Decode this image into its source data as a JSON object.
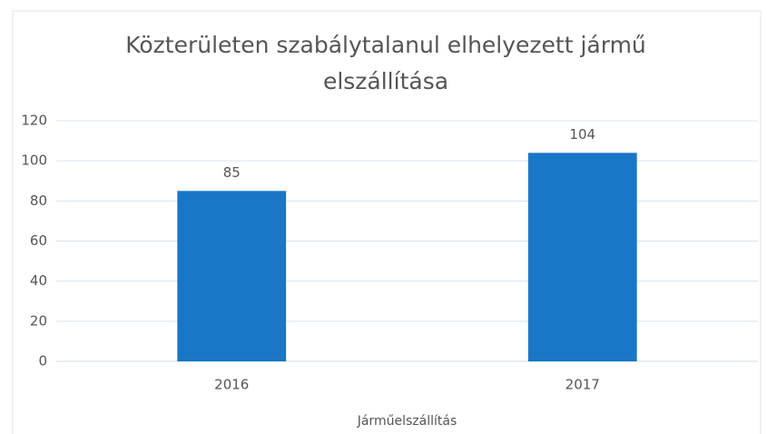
{
  "chart_data": {
    "type": "bar",
    "title": "Közterületen szabálytalanul elhelyezett jármű elszállítása",
    "categories": [
      "2016",
      "2017"
    ],
    "values": [
      85,
      104
    ],
    "color": "#1a76c6",
    "x_label": "Járműelszállítás",
    "ylim": [
      0,
      120
    ],
    "yticks": [
      0,
      20,
      40,
      60,
      80,
      100,
      120
    ],
    "grid": true,
    "data_labels": true
  }
}
